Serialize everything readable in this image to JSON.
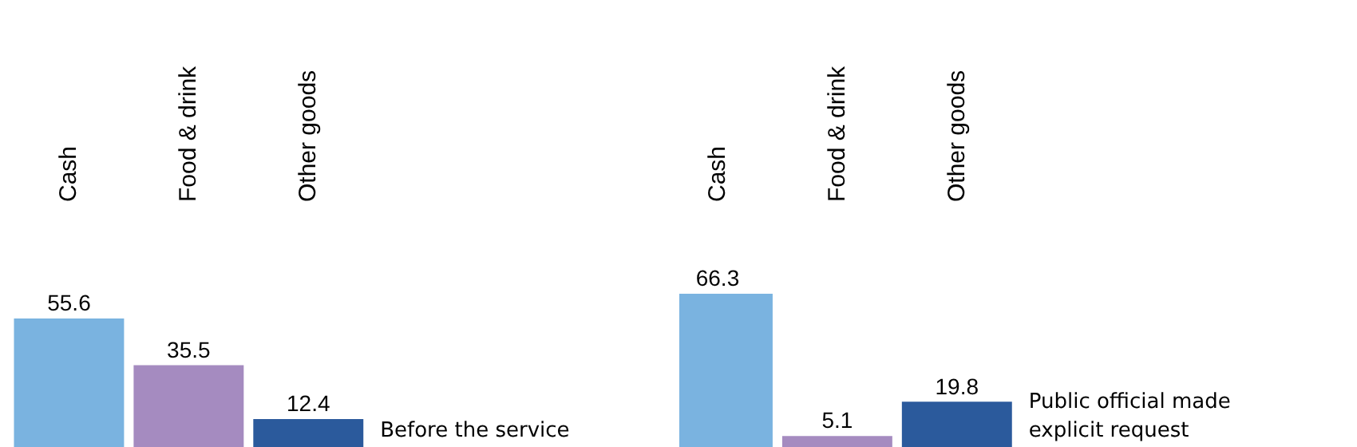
{
  "chart_data": [
    {
      "type": "bar",
      "categories": [
        "Cash",
        "Food & drink",
        "Other goods"
      ],
      "values": [
        55.6,
        35.5,
        12.4
      ],
      "colors": [
        "#7ab3e0",
        "#a58bc0",
        "#2b5a9c"
      ],
      "data_labels": true,
      "annotations": [
        "Before the service"
      ]
    },
    {
      "type": "bar",
      "categories": [
        "Cash",
        "Food & drink",
        "Other goods"
      ],
      "values": [
        66.3,
        5.1,
        19.8
      ],
      "colors": [
        "#7ab3e0",
        "#a58bc0",
        "#2b5a9c"
      ],
      "data_labels": true,
      "annotations": [
        "Public official made explicit request"
      ]
    }
  ]
}
